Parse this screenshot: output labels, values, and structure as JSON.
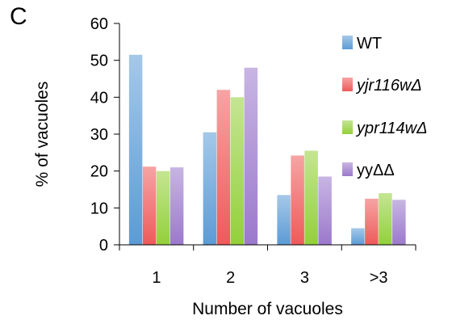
{
  "panel_label": "C",
  "chart_data": {
    "type": "bar",
    "title": "",
    "xlabel": "Number of vacuoles",
    "ylabel": "% of vacuoles",
    "ylim": [
      0,
      60
    ],
    "yticks": [
      0,
      10,
      20,
      30,
      40,
      50,
      60
    ],
    "categories": [
      "1",
      "2",
      "3",
      ">3"
    ],
    "grid": false,
    "legend_position": "right",
    "series": [
      {
        "name": "WT",
        "italic": false,
        "color": "#5b9bd5",
        "values": [
          51.5,
          30.5,
          13.5,
          4.5
        ]
      },
      {
        "name": "yjr116wΔ",
        "italic": true,
        "color": "#ee5a5a",
        "values": [
          21.2,
          42.0,
          24.2,
          12.5
        ]
      },
      {
        "name": "ypr114wΔ",
        "italic": true,
        "color": "#93d03a",
        "values": [
          20.0,
          40.0,
          25.5,
          14.0
        ]
      },
      {
        "name": "yyΔΔ",
        "italic": false,
        "color": "#9b79cc",
        "values": [
          21.0,
          48.0,
          18.5,
          12.2
        ]
      }
    ]
  }
}
